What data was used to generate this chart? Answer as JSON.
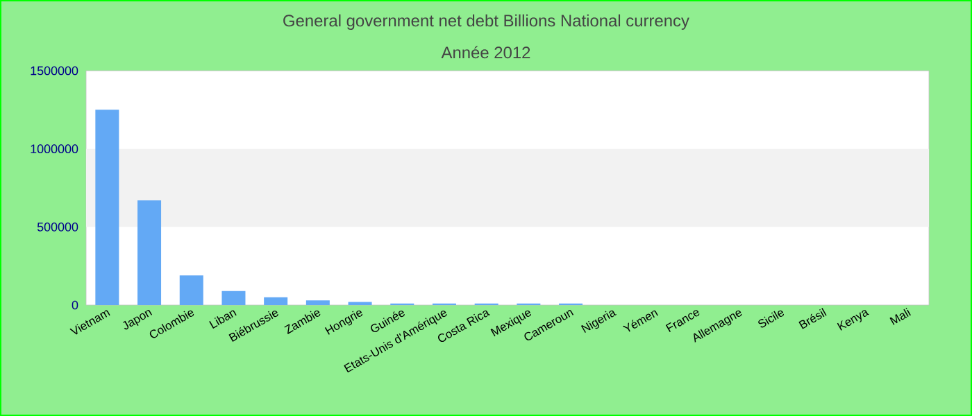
{
  "chart_data": {
    "type": "bar",
    "title": "General government net debt Billions National currency",
    "subtitle": "Année 2012",
    "categories": [
      "Vietnam",
      "Japon",
      "Colombie",
      "Liban",
      "Biébrussie",
      "Zambie",
      "Hongrie",
      "Guinée",
      "Etats-Unis d'Amérique",
      "Costa Rica",
      "Mexique",
      "Cameroun",
      "Nigeria",
      "Yémen",
      "France",
      "Allemagne",
      "Sicile",
      "Brésil",
      "Kenya",
      "Mali"
    ],
    "values": [
      1250000,
      670000,
      190000,
      90000,
      50000,
      30000,
      20000,
      10000,
      10000,
      10000,
      10000,
      10000,
      0,
      0,
      0,
      0,
      0,
      0,
      0,
      0
    ],
    "color": "#63a9f5",
    "ylim": [
      0,
      1500000
    ],
    "yticks": [
      0,
      500000,
      1000000,
      1500000
    ],
    "bands": [
      {
        "axis": "y",
        "from": 500000,
        "to": 1000000,
        "color": "#f2f2f2"
      }
    ]
  }
}
